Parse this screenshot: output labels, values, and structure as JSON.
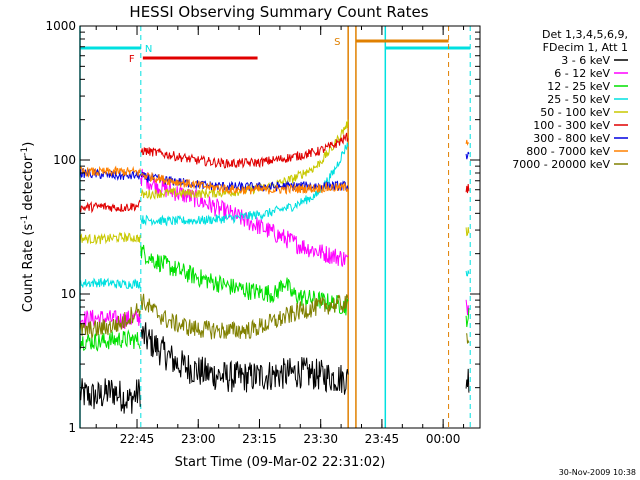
{
  "chart_data": {
    "type": "line",
    "title": "HESSI Observing Summary Count Rates",
    "xlabel": "Start Time (09-Mar-02 22:31:02)",
    "ylabel_main": "Count Rate (s",
    "ylabel_sup1": "-1",
    "ylabel_mid": " detector",
    "ylabel_sup2": "-1",
    "ylabel_end": ")",
    "yscale": "log",
    "ylim": [
      1,
      1000
    ],
    "xlim_minutes": [
      0,
      98
    ],
    "x_ticks": [
      {
        "label": "22:45",
        "minutes": 13.97
      },
      {
        "label": "23:00",
        "minutes": 28.97
      },
      {
        "label": "23:15",
        "minutes": 43.97
      },
      {
        "label": "23:30",
        "minutes": 58.97
      },
      {
        "label": "23:45",
        "minutes": 73.97
      },
      {
        "label": "00:00",
        "minutes": 88.97
      }
    ],
    "y_ticks": [
      {
        "label": "1",
        "value": 1
      },
      {
        "label": "10",
        "value": 10
      },
      {
        "label": "100",
        "value": 100
      },
      {
        "label": "1000",
        "value": 1000
      }
    ],
    "legend": {
      "header": [
        "Det 1,3,4,5,6,9,",
        "FDecim 1, Att 1"
      ],
      "items": [
        {
          "label": "3 - 6 keV",
          "color": "#000000"
        },
        {
          "label": "6 - 12 keV",
          "color": "#ff00ff"
        },
        {
          "label": "12 - 25 keV",
          "color": "#00e000"
        },
        {
          "label": "25 - 50 keV",
          "color": "#00e0e0"
        },
        {
          "label": "50 - 100 keV",
          "color": "#c8c800"
        },
        {
          "label": "100 - 300 keV",
          "color": "#e00000"
        },
        {
          "label": "300 - 800 keV",
          "color": "#0000e0"
        },
        {
          "label": "800 - 7000 keV",
          "color": "#ff8000"
        },
        {
          "label": "7000 - 20000 keV",
          "color": "#808000"
        }
      ]
    },
    "series": [
      {
        "name": "3 - 6 keV",
        "color": "#000000",
        "segments": [
          {
            "x": [
              0,
              4,
              8,
              12,
              14.9
            ],
            "y": [
              1.8,
              1.7,
              1.9,
              1.6,
              1.9
            ]
          },
          {
            "x": [
              14.9,
              18,
              24,
              30,
              36,
              42,
              48,
              54,
              58,
              65.7
            ],
            "y": [
              5,
              4.2,
              3,
              2.6,
              2.4,
              2.4,
              2.5,
              2.6,
              2.5,
              2.3
            ]
          },
          {
            "x": [
              94.6,
              95.3
            ],
            "y": [
              2.3,
              2.4
            ]
          }
        ]
      },
      {
        "name": "6 - 12 keV",
        "color": "#ff00ff",
        "segments": [
          {
            "x": [
              0,
              5,
              10,
              14.9
            ],
            "y": [
              6.5,
              6.6,
              6.4,
              6.6
            ]
          },
          {
            "x": [
              14.9,
              20,
              28,
              35,
              42,
              48,
              54,
              60,
              63,
              65.7
            ],
            "y": [
              75,
              62,
              52,
              42,
              34,
              28,
              23,
              20,
              19,
              18
            ]
          },
          {
            "x": [
              94.6,
              95.3
            ],
            "y": [
              8,
              8.2
            ]
          }
        ]
      },
      {
        "name": "12 - 25 keV",
        "color": "#00e000",
        "segments": [
          {
            "x": [
              0,
              5,
              10,
              14.9
            ],
            "y": [
              4.5,
              4.4,
              4.6,
              4.5
            ]
          },
          {
            "x": [
              14.9,
              18,
              24,
              30,
              36,
              42,
              48,
              50,
              52,
              54,
              60,
              65.7
            ],
            "y": [
              21,
              18,
              15,
              13,
              11.5,
              10.5,
              10,
              12.5,
              10,
              9.5,
              8.8,
              8
            ]
          },
          {
            "x": [
              94.6,
              95.3
            ],
            "y": [
              6.6,
              6.8
            ]
          }
        ]
      },
      {
        "name": "25 - 50 keV",
        "color": "#00e0e0",
        "segments": [
          {
            "x": [
              0,
              5,
              10,
              14.9
            ],
            "y": [
              12,
              12.2,
              11.8,
              12
            ]
          },
          {
            "x": [
              14.9,
              22,
              30,
              38,
              46,
              52,
              58,
              62,
              65.7
            ],
            "y": [
              36,
              35,
              35.5,
              37,
              40,
              45,
              55,
              80,
              135
            ]
          },
          {
            "x": [
              94.6,
              95.3
            ],
            "y": [
              14,
              14.5
            ]
          }
        ]
      },
      {
        "name": "50 - 100 keV",
        "color": "#c8c800",
        "segments": [
          {
            "x": [
              0,
              5,
              10,
              14.9
            ],
            "y": [
              26,
              25.5,
              26.5,
              26
            ]
          },
          {
            "x": [
              14.9,
              22,
              30,
              38,
              46,
              52,
              58,
              62,
              65.7
            ],
            "y": [
              55,
              57,
              56,
              58,
              63,
              72,
              90,
              125,
              190
            ]
          },
          {
            "x": [
              94.6,
              95.3
            ],
            "y": [
              29,
              30
            ]
          }
        ]
      },
      {
        "name": "100 - 300 keV",
        "color": "#e00000",
        "segments": [
          {
            "x": [
              0,
              5,
              10,
              14.9
            ],
            "y": [
              44,
              45,
              44,
              46
            ]
          },
          {
            "x": [
              14.9,
              20,
              28,
              36,
              44,
              52,
              58,
              62,
              65.7
            ],
            "y": [
              118,
              112,
              100,
              94,
              96,
              105,
              115,
              128,
              150
            ]
          },
          {
            "x": [
              94.6,
              95.3
            ],
            "y": [
              60,
              62
            ]
          }
        ]
      },
      {
        "name": "300 - 800 keV",
        "color": "#0000e0",
        "segments": [
          {
            "x": [
              0,
              5,
              10,
              14.9
            ],
            "y": [
              80,
              78,
              76,
              77
            ]
          },
          {
            "x": [
              14.9,
              22,
              30,
              38,
              46,
              54,
              60,
              65.7
            ],
            "y": [
              75,
              70,
              65,
              63,
              63,
              64,
              64,
              64
            ]
          },
          {
            "x": [
              94.6,
              95.3
            ],
            "y": [
              108,
              106
            ]
          }
        ]
      },
      {
        "name": "800 - 7000 keV",
        "color": "#ff8000",
        "segments": [
          {
            "x": [
              0,
              5,
              10,
              14.9
            ],
            "y": [
              82,
              81,
              82,
              81
            ]
          },
          {
            "x": [
              14.9,
              22,
              30,
              38,
              46,
              54,
              60,
              65.7
            ],
            "y": [
              78,
              70,
              64,
              60,
              60,
              61,
              62,
              62
            ]
          },
          {
            "x": [
              94.6,
              95.3
            ],
            "y": [
              140,
              138
            ]
          }
        ]
      },
      {
        "name": "7000 - 20000 keV",
        "color": "#808000",
        "segments": [
          {
            "x": [
              0,
              5,
              10,
              14.9
            ],
            "y": [
              5.3,
              5.5,
              6,
              8
            ]
          },
          {
            "x": [
              14.9,
              18,
              22,
              28,
              36,
              42,
              48,
              54,
              60,
              65.7
            ],
            "y": [
              9,
              7.5,
              6.2,
              5.5,
              5.3,
              5.4,
              6.3,
              7.5,
              8.2,
              8.5
            ]
          },
          {
            "x": [
              94.6,
              95.3
            ],
            "y": [
              4.8,
              5
            ]
          }
        ]
      }
    ],
    "overlays": {
      "n_label": "N",
      "f_label": "F",
      "s_label": "S",
      "night_color": "#00e0e0",
      "flare_color": "#e00000",
      "saa_color": "#e08000",
      "night_solid_lines": [
        0,
        74.8
      ],
      "night_dashed_lines": [
        14.9,
        95.6
      ],
      "night_bars": [
        [
          0,
          14.9
        ],
        [
          74.8,
          95.6
        ]
      ],
      "flare_bar": [
        15.4,
        43.5
      ],
      "saa_solid_lines": [
        65.7,
        67.6
      ],
      "saa_dashed_line": [
        90.3
      ],
      "saa_bar": [
        67.6,
        90.3
      ]
    },
    "timestamp": "30-Nov-2009 10:38"
  }
}
